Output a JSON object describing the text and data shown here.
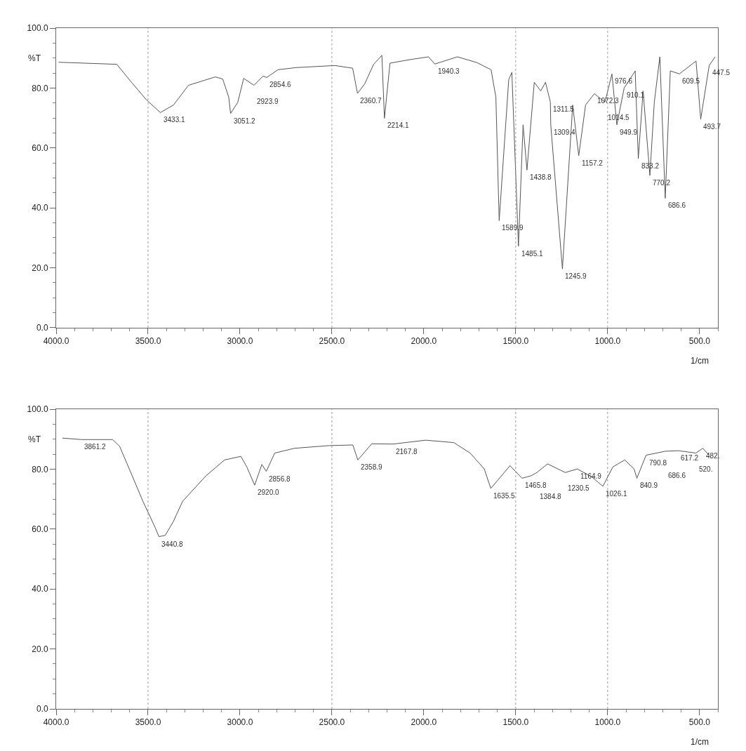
{
  "chart_data": [
    {
      "type": "line",
      "ylabel": "%T",
      "xlabel": "1/cm",
      "xlim": [
        4000,
        400
      ],
      "ylim": [
        0,
        100
      ],
      "xticks": [
        {
          "value": 4000,
          "label": "4000.0"
        },
        {
          "value": 3500,
          "label": "3500.0"
        },
        {
          "value": 3000,
          "label": "3000.0"
        },
        {
          "value": 2500,
          "label": "2500.0"
        },
        {
          "value": 2000,
          "label": "2000.0"
        },
        {
          "value": 1500,
          "label": "1500.0"
        },
        {
          "value": 1000,
          "label": "1000.0"
        },
        {
          "value": 500,
          "label": "500.0"
        }
      ],
      "yticks": [
        {
          "value": 0,
          "label": "0.0"
        },
        {
          "value": 20,
          "label": "20.0"
        },
        {
          "value": 40,
          "label": "40.0"
        },
        {
          "value": 60,
          "label": "60.0"
        },
        {
          "value": 80,
          "label": "80.0"
        },
        {
          "value": 100,
          "label": "100.0"
        }
      ],
      "marker": "none",
      "line_style": "solid",
      "series": [
        {
          "color": "#555555",
          "x": [
            3987,
            3670,
            3589,
            3508,
            3433.1,
            3362,
            3280,
            3134,
            3094,
            3061,
            3051.2,
            3012,
            2980,
            2923.9,
            2874,
            2854.6,
            2793,
            2696,
            2484,
            2387,
            2360.7,
            2322,
            2273,
            2228,
            2214.1,
            2184,
            2062,
            1974,
            1940.3,
            1817,
            1712,
            1634,
            1608,
            1589.9,
            1538,
            1521,
            1485.1,
            1460,
            1438.8,
            1399,
            1364,
            1338,
            1311.5,
            1309.4,
            1245.9,
            1190,
            1157.2,
            1120,
            1072.3,
            1014.5,
            976.6,
            949.9,
            910.1,
            850,
            833.2,
            807,
            770.2,
            746,
            716,
            686.6,
            659,
            609.5,
            519,
            493.7,
            447.5,
            415
          ],
          "values": [
            88.6,
            87.9,
            81.8,
            76,
            71.8,
            74.3,
            80.9,
            83.7,
            83,
            76.9,
            71.5,
            75.2,
            83.2,
            80.9,
            84,
            83.5,
            86.1,
            86.8,
            87.5,
            86.6,
            78.2,
            81.3,
            87.9,
            90.9,
            69.9,
            88.3,
            89.6,
            90.4,
            88,
            90.4,
            88.5,
            86.1,
            77,
            35.7,
            82.8,
            85.2,
            27.2,
            67.7,
            52.6,
            81.9,
            79,
            81.9,
            75.3,
            67.7,
            19.6,
            74.3,
            57.4,
            74.3,
            78.1,
            75.3,
            84.7,
            67.7,
            80,
            85.7,
            56.4,
            79,
            50.8,
            75.3,
            90.4,
            43.2,
            85.7,
            84.7,
            89,
            69.6,
            87.5,
            90.4
          ]
        }
      ],
      "ref_lines": [
        {
          "axis": "x",
          "value": 3500,
          "line_style": "dotted"
        },
        {
          "axis": "x",
          "value": 2500,
          "line_style": "dotted"
        },
        {
          "axis": "x",
          "value": 1500,
          "line_style": "dotted"
        },
        {
          "axis": "x",
          "value": 1000,
          "line_style": "dotted"
        }
      ],
      "annotations": [
        {
          "text": "3433.1",
          "x": 3433.1,
          "y": 71.8
        },
        {
          "text": "3051.2",
          "x": 3051.2,
          "y": 71.5
        },
        {
          "text": "2854.6",
          "x": 2854.6,
          "y": 83.5
        },
        {
          "text": "2923.9",
          "x": 2923.9,
          "y": 80.9
        },
        {
          "text": "2360.7",
          "x": 2360.7,
          "y": 78.2
        },
        {
          "text": "2214.1",
          "x": 2214.1,
          "y": 69.9
        },
        {
          "text": "1940.3",
          "x": 1940.3,
          "y": 88
        },
        {
          "text": "1589.9",
          "x": 1589.9,
          "y": 35.7
        },
        {
          "text": "1485.1",
          "x": 1485.1,
          "y": 27.2
        },
        {
          "text": "1438.8",
          "x": 1438.8,
          "y": 52.6
        },
        {
          "text": "1311.5",
          "x": 1311.5,
          "y": 75.3
        },
        {
          "text": "1309.4",
          "x": 1309.4,
          "y": 67.7
        },
        {
          "text": "1245.9",
          "x": 1245.9,
          "y": 19.6
        },
        {
          "text": "1157.2",
          "x": 1157.2,
          "y": 57.4
        },
        {
          "text": "1072.3",
          "x": 1072.3,
          "y": 78.1
        },
        {
          "text": "1014.5",
          "x": 1014.5,
          "y": 75.3
        },
        {
          "text": "976.6",
          "x": 976.6,
          "y": 84.7
        },
        {
          "text": "910.1",
          "x": 910.1,
          "y": 80
        },
        {
          "text": "949.9",
          "x": 949.9,
          "y": 67.7
        },
        {
          "text": "833.2",
          "x": 833.2,
          "y": 56.4
        },
        {
          "text": "770.2",
          "x": 770.2,
          "y": 50.8
        },
        {
          "text": "686.6",
          "x": 686.6,
          "y": 43.2
        },
        {
          "text": "447.5",
          "x": 447.5,
          "y": 87.5
        },
        {
          "text": "609.5",
          "x": 609.5,
          "y": 84.7
        },
        {
          "text": "493.7",
          "x": 493.7,
          "y": 69.6
        }
      ]
    },
    {
      "type": "line",
      "ylabel": "%T",
      "xlabel": "1/cm",
      "xlim": [
        4000,
        400
      ],
      "ylim": [
        0,
        100
      ],
      "xticks": [
        {
          "value": 4000,
          "label": "4000.0"
        },
        {
          "value": 3500,
          "label": "3500.0"
        },
        {
          "value": 3000,
          "label": "3000.0"
        },
        {
          "value": 2500,
          "label": "2500.0"
        },
        {
          "value": 2000,
          "label": "2000.0"
        },
        {
          "value": 1500,
          "label": "1500.0"
        },
        {
          "value": 1000,
          "label": "1000.0"
        },
        {
          "value": 500,
          "label": "500.0"
        }
      ],
      "yticks": [
        {
          "value": 0,
          "label": "0.0"
        },
        {
          "value": 20,
          "label": "20.0"
        },
        {
          "value": 40,
          "label": "40.0"
        },
        {
          "value": 60,
          "label": "60.0"
        },
        {
          "value": 80,
          "label": "80.0"
        },
        {
          "value": 100,
          "label": "100.0"
        }
      ],
      "marker": "none",
      "line_style": "solid",
      "series": [
        {
          "color": "#555555",
          "x": [
            3966,
            3861.2,
            3693,
            3655,
            3591,
            3528,
            3464,
            3440.8,
            3407,
            3363,
            3312,
            3185,
            3084,
            2995,
            2963,
            2920,
            2881,
            2856.8,
            2811,
            2703,
            2513,
            2386,
            2358.9,
            2283,
            2167.8,
            1990,
            1837,
            1748,
            1671,
            1635.5,
            1531,
            1465.8,
            1417,
            1384.8,
            1327,
            1230.5,
            1164.9,
            1085,
            1026.1,
            971,
            907,
            856,
            840.9,
            790.8,
            686.6,
            617.2,
            520,
            482,
            448
          ],
          "values": [
            90.4,
            89.9,
            89.9,
            87.7,
            78.5,
            69.3,
            60.9,
            57.5,
            57.9,
            62.5,
            69.3,
            77.8,
            83.1,
            84.3,
            80.8,
            74.7,
            81.6,
            79.3,
            85.4,
            87,
            87.9,
            88.1,
            83.1,
            88.5,
            88.4,
            89.7,
            88.9,
            85.4,
            80.1,
            73.6,
            81.2,
            77,
            77.8,
            78.9,
            81.8,
            78.9,
            80.1,
            77.4,
            74.3,
            80.8,
            83.1,
            80.1,
            77,
            84.7,
            86,
            86.2,
            85.4,
            87,
            84.7
          ]
        }
      ],
      "ref_lines": [
        {
          "axis": "x",
          "value": 3500,
          "line_style": "dotted"
        },
        {
          "axis": "x",
          "value": 2500,
          "line_style": "dotted"
        },
        {
          "axis": "x",
          "value": 1500,
          "line_style": "dotted"
        },
        {
          "axis": "x",
          "value": 1000,
          "line_style": "dotted"
        }
      ],
      "annotations": [
        {
          "text": "3861.2",
          "x": 3861.2,
          "y": 89.9
        },
        {
          "text": "3440.8",
          "x": 3440.8,
          "y": 57.5
        },
        {
          "text": "2856.8",
          "x": 2856.8,
          "y": 79.3
        },
        {
          "text": "2920.0",
          "x": 2920,
          "y": 74.7
        },
        {
          "text": "2358.9",
          "x": 2358.9,
          "y": 83.1
        },
        {
          "text": "2167.8",
          "x": 2167.8,
          "y": 88.4
        },
        {
          "text": "1635.5",
          "x": 1635.5,
          "y": 73.6
        },
        {
          "text": "1465.8",
          "x": 1465.8,
          "y": 77
        },
        {
          "text": "1384.8",
          "x": 1384.8,
          "y": 78.9
        },
        {
          "text": "1164.9",
          "x": 1164.9,
          "y": 80.1
        },
        {
          "text": "1230.5",
          "x": 1230.5,
          "y": 78.9
        },
        {
          "text": "1026.1",
          "x": 1026.1,
          "y": 74.3
        },
        {
          "text": "840.9",
          "x": 840.9,
          "y": 77
        },
        {
          "text": "790.8",
          "x": 790.8,
          "y": 84.7
        },
        {
          "text": "686.6",
          "x": 686.6,
          "y": 86
        },
        {
          "text": "617.2",
          "x": 617.2,
          "y": 86.2
        },
        {
          "text": "482.",
          "x": 482,
          "y": 87
        },
        {
          "text": "520.",
          "x": 520,
          "y": 85.4
        }
      ]
    }
  ]
}
